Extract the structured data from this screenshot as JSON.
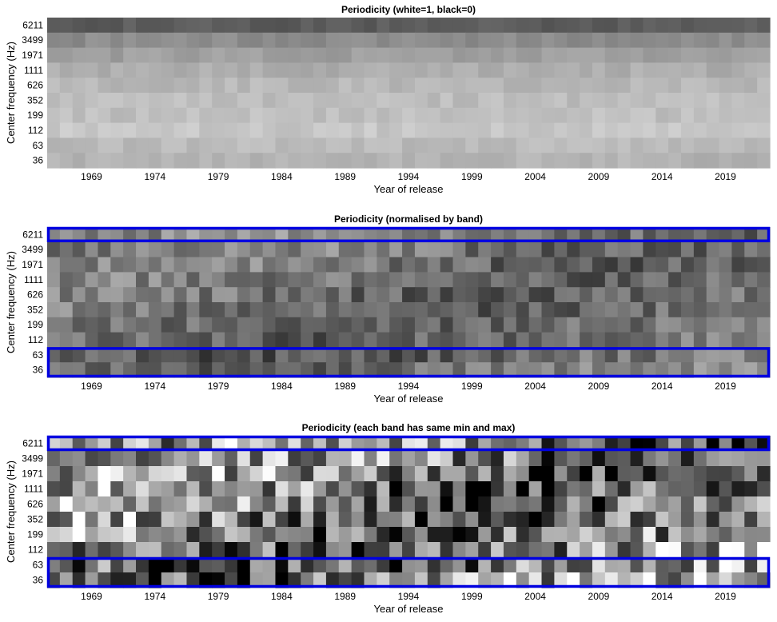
{
  "chart_data": [
    {
      "type": "heatmap",
      "title": "Periodicity (white=1, black=0)",
      "xlabel": "Year of release",
      "ylabel": "Center frequency (Hz)",
      "x_range": [
        1966,
        2022
      ],
      "x_ticks": [
        "1969",
        "1974",
        "1979",
        "1984",
        "1989",
        "1994",
        "1999",
        "2004",
        "2009",
        "2014",
        "2019"
      ],
      "y_ticks": [
        "6211",
        "3499",
        "1971",
        "1111",
        "626",
        "352",
        "199",
        "112",
        "63",
        "36"
      ],
      "colormap": "gray",
      "value_range": [
        0,
        1
      ],
      "row_base_values": [
        0.36,
        0.55,
        0.62,
        0.68,
        0.72,
        0.74,
        0.75,
        0.78,
        0.73,
        0.7
      ],
      "highlight_rows": []
    },
    {
      "type": "heatmap",
      "title": "Periodicity (normalised by band)",
      "xlabel": "Year of release",
      "ylabel": "Center frequency (Hz)",
      "x_range": [
        1966,
        2022
      ],
      "x_ticks": [
        "1969",
        "1974",
        "1979",
        "1984",
        "1989",
        "1994",
        "1999",
        "2004",
        "2009",
        "2014",
        "2019"
      ],
      "y_ticks": [
        "6211",
        "3499",
        "1971",
        "1111",
        "626",
        "352",
        "199",
        "112",
        "63",
        "36"
      ],
      "colormap": "gray",
      "value_range": [
        0,
        1
      ],
      "row_base_values": [
        0.48,
        0.45,
        0.44,
        0.44,
        0.44,
        0.44,
        0.44,
        0.44,
        0.4,
        0.45
      ],
      "highlight_rows": [
        [
          "6211",
          "6211"
        ],
        [
          "63",
          "36"
        ]
      ],
      "highlight_color": "#0000e0"
    },
    {
      "type": "heatmap",
      "title": "Periodicity (each band has same min and max)",
      "xlabel": "Year of release",
      "ylabel": "Center frequency (Hz)",
      "x_range": [
        1966,
        2022
      ],
      "x_ticks": [
        "1969",
        "1974",
        "1979",
        "1984",
        "1989",
        "1994",
        "1999",
        "2004",
        "2009",
        "2014",
        "2019"
      ],
      "y_ticks": [
        "6211",
        "3499",
        "1971",
        "1111",
        "626",
        "352",
        "199",
        "112",
        "63",
        "36"
      ],
      "colormap": "gray",
      "value_range": [
        0,
        1
      ],
      "row_base_values": [
        0.45,
        0.5,
        0.5,
        0.5,
        0.5,
        0.5,
        0.5,
        0.5,
        0.45,
        0.5
      ],
      "highlight_rows": [
        [
          "6211",
          "6211"
        ],
        [
          "63",
          "36"
        ]
      ],
      "highlight_color": "#0000e0"
    }
  ]
}
